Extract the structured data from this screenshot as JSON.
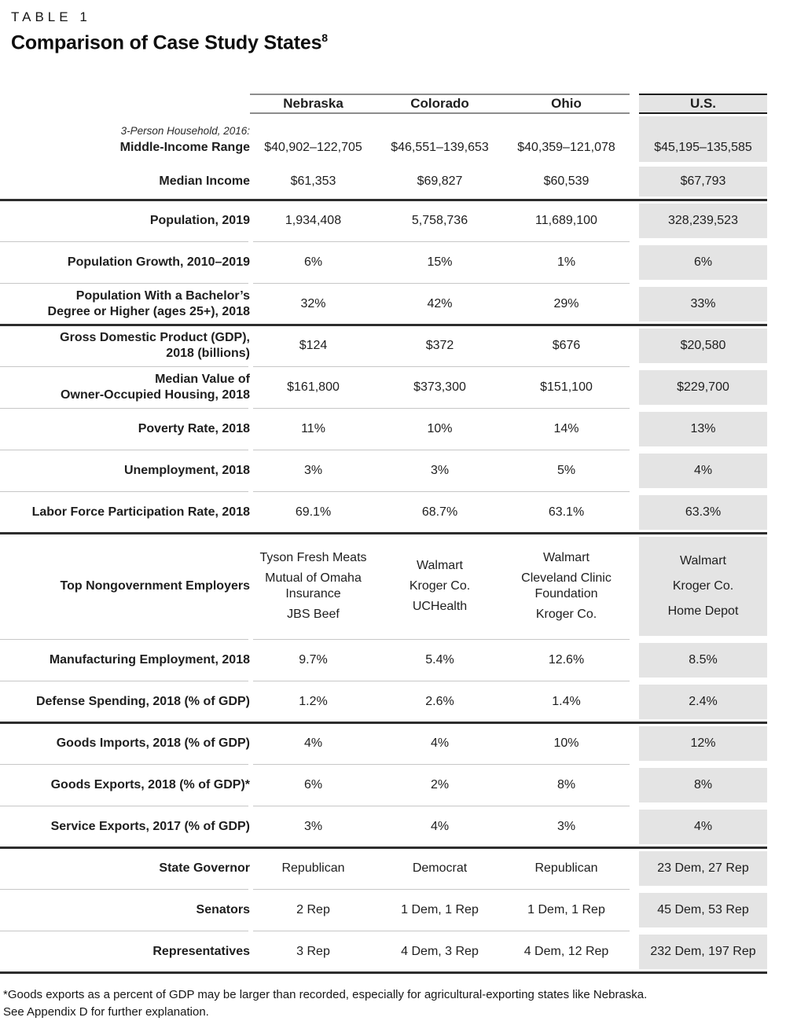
{
  "kicker": "TABLE 1",
  "title": "Comparison of Case Study States",
  "title_superscript": "8",
  "footnote": {
    "line1": "*Goods exports as a percent of GDP may be larger than recorded, especially for agricultural-exporting states like Nebraska.",
    "line2": "See Appendix D for further explanation."
  },
  "colors": {
    "us_column_bg": "#e4e4e4",
    "light_rule": "#c7c7c7",
    "heavy_rule": "#2d2d2d",
    "header_rule": "#8d8d8d",
    "text": "#1e1e1e"
  },
  "chart_data": {
    "type": "table",
    "title": "Comparison of Case Study States",
    "columns": [
      "Nebraska",
      "Colorado",
      "Ohio",
      "U.S."
    ],
    "rows": [
      {
        "prefix": "3-Person Household, 2016:",
        "label": "Middle-Income Range",
        "values": [
          "$40,902–122,705",
          "$46,551–139,653",
          "$40,359–121,078",
          "$45,195–135,585"
        ],
        "separator_after": "none"
      },
      {
        "label": "Median Income",
        "values": [
          "$61,353",
          "$69,827",
          "$60,539",
          "$67,793"
        ],
        "separator_after": "heavy"
      },
      {
        "label": "Population, 2019",
        "values": [
          "1,934,408",
          "5,758,736",
          "11,689,100",
          "328,239,523"
        ],
        "separator_after": "light"
      },
      {
        "label": "Population Growth, 2010–2019",
        "values": [
          "6%",
          "15%",
          "1%",
          "6%"
        ],
        "separator_after": "light"
      },
      {
        "label": "Population With a Bachelor’s\nDegree or Higher (ages 25+), 2018",
        "values": [
          "32%",
          "42%",
          "29%",
          "33%"
        ],
        "separator_after": "heavy"
      },
      {
        "label": "Gross Domestic Product (GDP),\n2018 (billions)",
        "values": [
          "$124",
          "$372",
          "$676",
          "$20,580"
        ],
        "separator_after": "light"
      },
      {
        "label": "Median Value of\nOwner-Occupied Housing, 2018",
        "values": [
          "$161,800",
          "$373,300",
          "$151,100",
          "$229,700"
        ],
        "separator_after": "light"
      },
      {
        "label": "Poverty Rate, 2018",
        "values": [
          "11%",
          "10%",
          "14%",
          "13%"
        ],
        "separator_after": "light"
      },
      {
        "label": "Unemployment, 2018",
        "values": [
          "3%",
          "3%",
          "5%",
          "4%"
        ],
        "separator_after": "light"
      },
      {
        "label": "Labor Force Participation Rate, 2018",
        "values": [
          "69.1%",
          "68.7%",
          "63.1%",
          "63.3%"
        ],
        "separator_after": "heavy"
      },
      {
        "label": "Top Nongovernment Employers",
        "values": [
          [
            "Tyson Fresh Meats",
            "Mutual of Omaha Insurance",
            "JBS Beef"
          ],
          [
            "Walmart",
            "Kroger Co.",
            "UCHealth"
          ],
          [
            "Walmart",
            "Cleveland Clinic Foundation",
            "Kroger Co."
          ],
          [
            "Walmart",
            "Kroger Co.",
            "Home Depot"
          ]
        ],
        "separator_after": "light"
      },
      {
        "label": "Manufacturing Employment, 2018",
        "values": [
          "9.7%",
          "5.4%",
          "12.6%",
          "8.5%"
        ],
        "separator_after": "light"
      },
      {
        "label": "Defense Spending, 2018 (% of GDP)",
        "values": [
          "1.2%",
          "2.6%",
          "1.4%",
          "2.4%"
        ],
        "separator_after": "heavy"
      },
      {
        "label": "Goods Imports, 2018 (% of GDP)",
        "values": [
          "4%",
          "4%",
          "10%",
          "12%"
        ],
        "separator_after": "light"
      },
      {
        "label": "Goods Exports, 2018 (% of GDP)*",
        "values": [
          "6%",
          "2%",
          "8%",
          "8%"
        ],
        "separator_after": "light"
      },
      {
        "label": "Service Exports, 2017 (% of GDP)",
        "values": [
          "3%",
          "4%",
          "3%",
          "4%"
        ],
        "separator_after": "heavy"
      },
      {
        "label": "State Governor",
        "values": [
          "Republican",
          "Democrat",
          "Republican",
          "23 Dem, 27 Rep"
        ],
        "separator_after": "light"
      },
      {
        "label": "Senators",
        "values": [
          "2 Rep",
          "1 Dem, 1 Rep",
          "1 Dem, 1 Rep",
          "45 Dem, 53 Rep"
        ],
        "separator_after": "light"
      },
      {
        "label": "Representatives",
        "values": [
          "3 Rep",
          "4 Dem, 3 Rep",
          "4 Dem, 12 Rep",
          "232 Dem, 197 Rep"
        ],
        "separator_after": "heavy"
      }
    ]
  }
}
